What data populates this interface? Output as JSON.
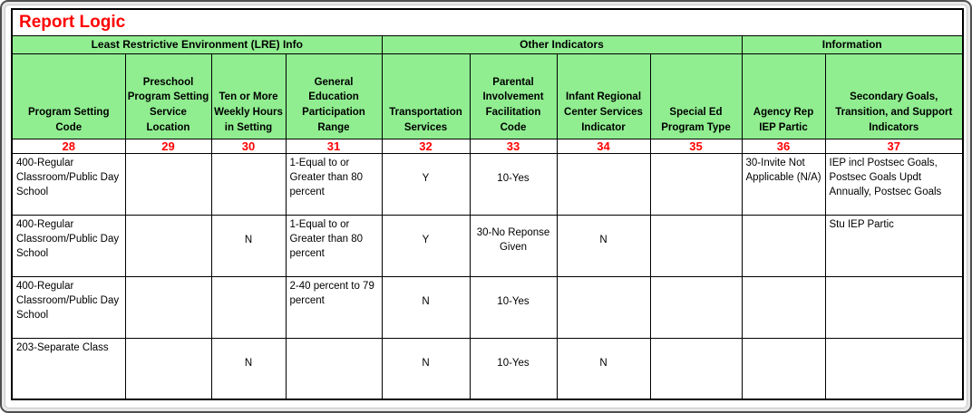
{
  "title": "Report Logic",
  "groups": [
    {
      "label": "Least Restrictive Environment (LRE) Info",
      "span": 4
    },
    {
      "label": "Other Indicators",
      "span": 4
    },
    {
      "label": "Information",
      "span": 2
    }
  ],
  "columns": [
    {
      "label": "Program Setting Code",
      "number": "28"
    },
    {
      "label": "Preschool Program Setting Service Location",
      "number": "29"
    },
    {
      "label": "Ten or More Weekly Hours in Setting",
      "number": "30"
    },
    {
      "label": "General Education Participation Range",
      "number": "31"
    },
    {
      "label": "Transportation Services",
      "number": "32"
    },
    {
      "label": "Parental Involvement Facilitation Code",
      "number": "33"
    },
    {
      "label": "Infant Regional Center Services Indicator",
      "number": "34"
    },
    {
      "label": "Special Ed Program Type",
      "number": "35"
    },
    {
      "label": "Agency Rep IEP Partic",
      "number": "36"
    },
    {
      "label": "Secondary Goals, Transition, and Support Indicators",
      "number": "37"
    }
  ],
  "rows": [
    [
      "400-Regular Classroom/Public Day School",
      "",
      "",
      "1-Equal to or Greater than 80 percent",
      "Y",
      "10-Yes",
      "",
      "",
      "30-Invite Not Applicable (N/A)",
      "IEP incl Postsec Goals, Postsec Goals Updt Annually, Postsec Goals"
    ],
    [
      "400-Regular Classroom/Public Day School",
      "",
      "N",
      "1-Equal to or Greater than 80 percent",
      "Y",
      "30-No Reponse Given",
      "N",
      "",
      "",
      "Stu IEP Partic"
    ],
    [
      "400-Regular Classroom/Public Day School",
      "",
      "",
      "2-40 percent to 79 percent",
      "N",
      "10-Yes",
      "",
      "",
      "",
      ""
    ],
    [
      "203-Separate Class",
      "",
      "N",
      "",
      "N",
      "10-Yes",
      "N",
      "",
      "",
      ""
    ]
  ],
  "colors": {
    "header_green": "#90EE90",
    "accent_red": "#FF0000",
    "border": "#000000"
  }
}
